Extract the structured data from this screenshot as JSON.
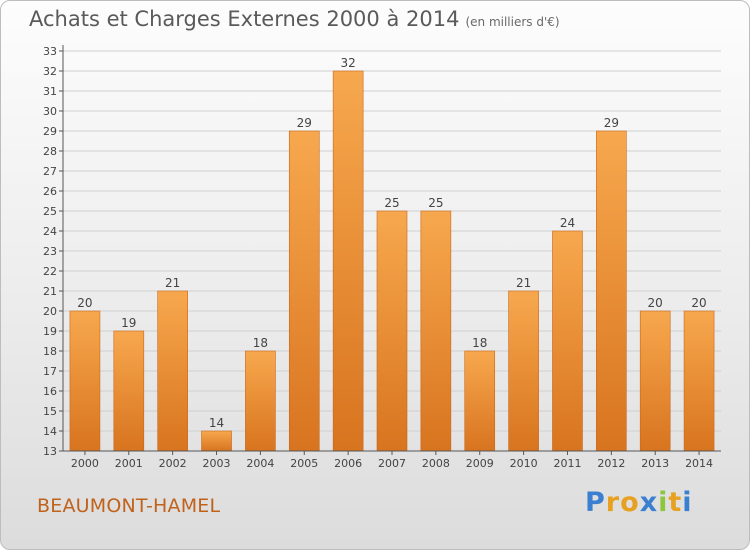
{
  "header": {
    "title": "Achats et Charges Externes 2000 à 2014",
    "unit": "(en milliers d'€)"
  },
  "footer": {
    "commune": "BEAUMONT-HAMEL",
    "logo_letters": [
      "P",
      "r",
      "o",
      "x",
      "i",
      "t",
      "i"
    ],
    "logo_colors": [
      "#3a7fd0",
      "#e8a020",
      "#e8a020",
      "#3a7fd0",
      "#8cc63f",
      "#e8a020",
      "#3a7fd0"
    ]
  },
  "colors": {
    "bar_light": "#f7a84e",
    "bar_dark": "#d8741f",
    "bar_edge": "#c9671a",
    "grid": "#d0d0d0",
    "axis": "#555555",
    "text": "#444444"
  },
  "chart_data": {
    "type": "bar",
    "title": "Achats et Charges Externes 2000 à 2014",
    "subtitle": "(en milliers d'€)",
    "xlabel": "",
    "ylabel": "",
    "categories": [
      "2000",
      "2001",
      "2002",
      "2003",
      "2004",
      "2005",
      "2006",
      "2007",
      "2008",
      "2009",
      "2010",
      "2011",
      "2012",
      "2013",
      "2014"
    ],
    "values": [
      20,
      19,
      21,
      14,
      18,
      29,
      32,
      25,
      25,
      18,
      21,
      24,
      29,
      20,
      20
    ],
    "data_labels": [
      "20",
      "19",
      "21",
      "14",
      "18",
      "29",
      "32",
      "25",
      "25",
      "18",
      "21",
      "24",
      "29",
      "20",
      "20"
    ],
    "ylim": [
      13,
      33
    ],
    "yticks": [
      13,
      14,
      15,
      16,
      17,
      18,
      19,
      20,
      21,
      22,
      23,
      24,
      25,
      26,
      27,
      28,
      29,
      30,
      31,
      32,
      33
    ],
    "grid": true
  }
}
